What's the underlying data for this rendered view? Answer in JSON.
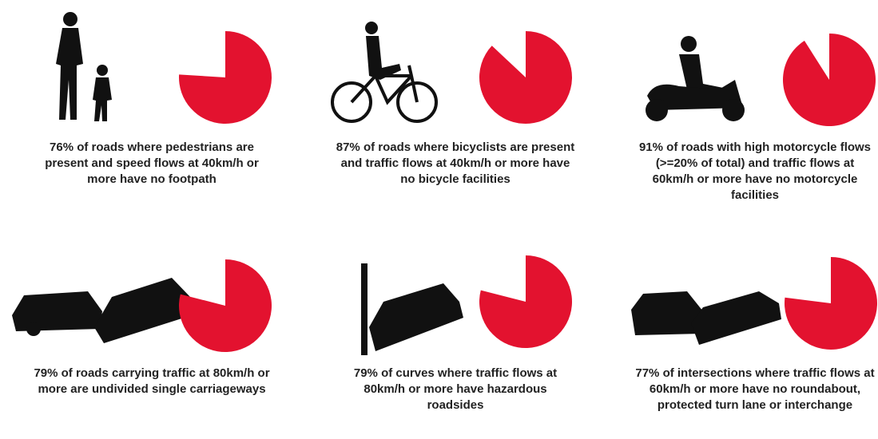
{
  "chart_data": [
    {
      "type": "pie",
      "values": [
        76
      ],
      "value_labels": [
        "76%"
      ],
      "color": "#e3122f",
      "caption": "of roads where pedestrians are present and speed flows at 40km/h or more have no footpath"
    },
    {
      "type": "pie",
      "values": [
        87
      ],
      "value_labels": [
        "87%"
      ],
      "color": "#e3122f",
      "caption": "of roads where bicyclists are present and traffic flows at 40km/h or more have no bicycle facilities"
    },
    {
      "type": "pie",
      "values": [
        91
      ],
      "value_labels": [
        "91%"
      ],
      "color": "#e3122f",
      "caption": "of roads with high motorcycle flows (>=20% of total) and traffic flows at 60km/h or more have no motorcycle facilities"
    },
    {
      "type": "pie",
      "values": [
        79
      ],
      "value_labels": [
        "79%"
      ],
      "color": "#e3122f",
      "caption": "of roads carrying traffic at 80km/h or more are undivided single carriageways"
    },
    {
      "type": "pie",
      "values": [
        79
      ],
      "value_labels": [
        "79%"
      ],
      "color": "#e3122f",
      "caption": "of curves where traffic flows at 80km/h or more have hazardous roadsides"
    },
    {
      "type": "pie",
      "values": [
        77
      ],
      "value_labels": [
        "77%"
      ],
      "color": "#e3122f",
      "caption": "of intersections where traffic flows at 60km/h or more have no roundabout, protected turn lane or interchange"
    }
  ]
}
